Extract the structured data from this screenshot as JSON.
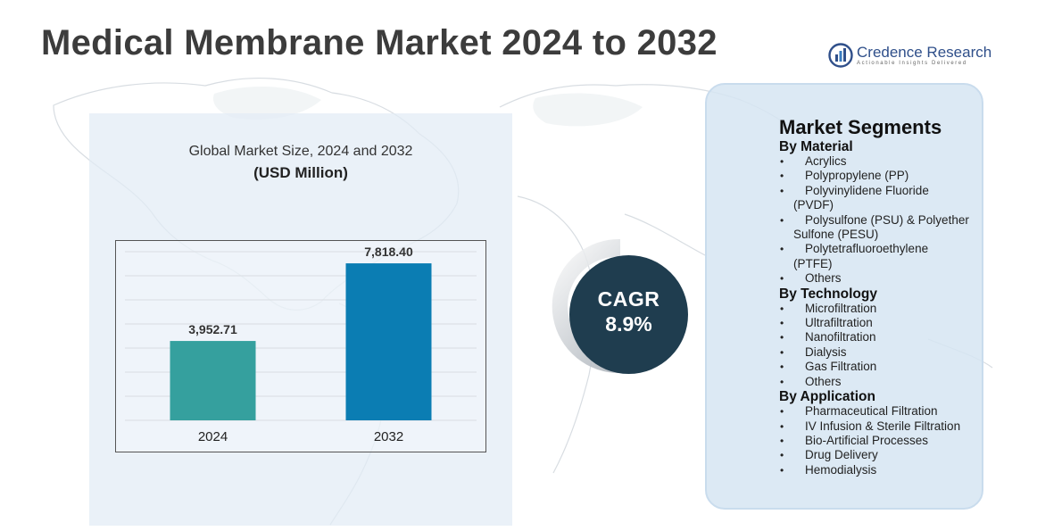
{
  "page": {
    "title": "Medical Membrane Market 2024 to 2032"
  },
  "logo": {
    "name": "Credence Research",
    "tagline": "Actionable Insights Delivered",
    "icon": "bar-chart-logo-icon"
  },
  "chart": {
    "title": "Global Market Size, 2024 and 2032",
    "unit": "(USD Million)"
  },
  "chart_data": {
    "type": "bar",
    "title": "Global Market Size, 2024 and 2032",
    "ylabel": "(USD Million)",
    "categories": [
      "2024",
      "2032"
    ],
    "values": [
      3952.71,
      7818.4
    ],
    "value_labels": [
      "3,952.71",
      "7,818.40"
    ],
    "colors": [
      "#35a09e",
      "#0b7db3"
    ],
    "ylim": [
      0,
      8400
    ],
    "grid": true,
    "legend": "none"
  },
  "cagr": {
    "label": "CAGR",
    "value": "8.9%"
  },
  "segments": {
    "title": "Market Segments",
    "groups": [
      {
        "heading": "By Material",
        "items": [
          {
            "first": "Acrylics"
          },
          {
            "first": "Polypropylene (PP)"
          },
          {
            "first": "Polyvinylidene Fluoride",
            "rest": "(PVDF)"
          },
          {
            "first": "Polysulfone (PSU) & Polyether",
            "rest": "Sulfone (PESU)"
          },
          {
            "first": "Polytetrafluoroethylene",
            "rest": "(PTFE)"
          },
          {
            "first": "Others"
          }
        ]
      },
      {
        "heading": "By Technology",
        "items": [
          {
            "first": "Microfiltration"
          },
          {
            "first": "Ultrafiltration"
          },
          {
            "first": "Nanofiltration"
          },
          {
            "first": "Dialysis"
          },
          {
            "first": "Gas Filtration"
          },
          {
            "first": "Others"
          }
        ]
      },
      {
        "heading": "By Application",
        "items": [
          {
            "first": "Pharmaceutical Filtration"
          },
          {
            "first": "IV Infusion & Sterile Filtration"
          },
          {
            "first": "Bio-Artificial Processes"
          },
          {
            "first": "Drug Delivery"
          },
          {
            "first": "Hemodialysis"
          }
        ]
      }
    ],
    "bullet": "•"
  },
  "colors": {
    "title_text": "#3c3c3c",
    "cagr_circle": "#1f3d4f",
    "panel_bg": "#d6e5f2"
  }
}
